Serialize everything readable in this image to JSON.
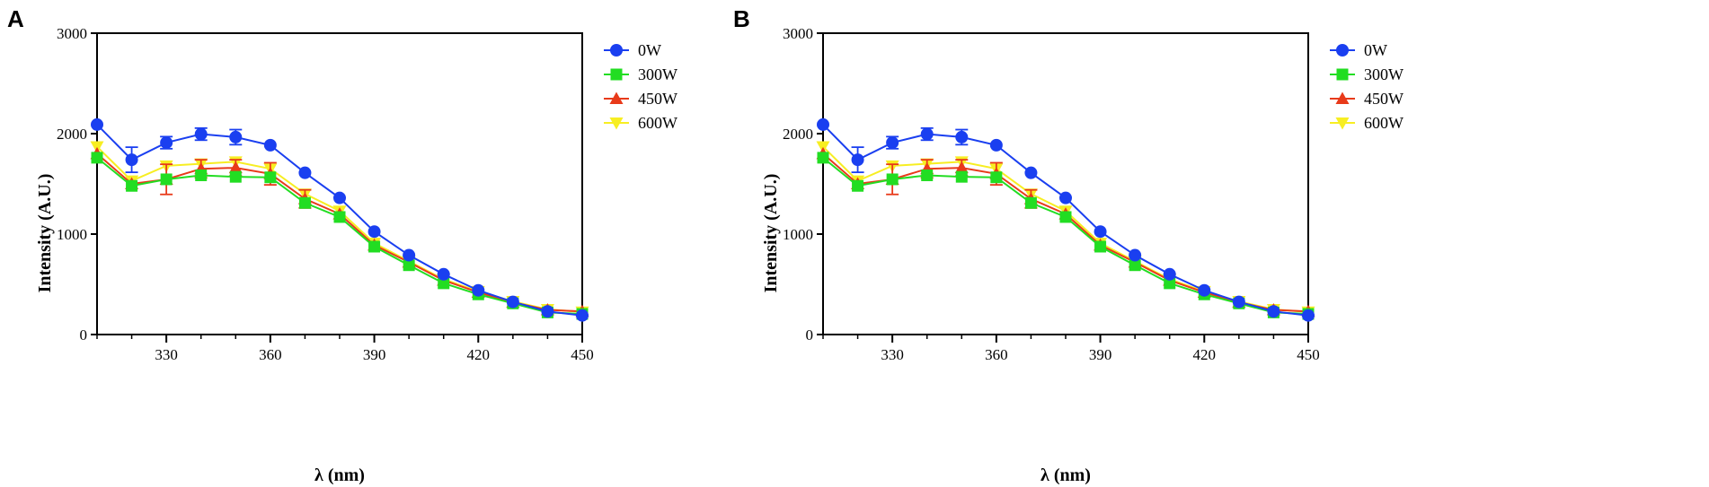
{
  "chart_data": [
    {
      "panel_label": "A",
      "type": "line",
      "xlabel": "λ (nm)",
      "ylabel": "Intensity  (A.U.)",
      "xlim": [
        310,
        450
      ],
      "ylim": [
        0,
        3000
      ],
      "x_ticks": [
        330,
        360,
        390,
        420,
        450
      ],
      "x_minor_step": 10,
      "y_ticks": [
        0,
        1000,
        2000,
        3000
      ],
      "x": [
        310,
        320,
        330,
        340,
        350,
        360,
        370,
        380,
        390,
        400,
        410,
        420,
        430,
        440,
        450
      ],
      "legend_position": "right",
      "series": [
        {
          "name": "0W",
          "color": "#1a3ff0",
          "marker": "circle",
          "values": [
            2090,
            1740,
            1910,
            1995,
            1965,
            1885,
            1610,
            1360,
            1025,
            790,
            600,
            440,
            325,
            230,
            190
          ],
          "errors": [
            0,
            125,
            60,
            60,
            75,
            0,
            0,
            0,
            0,
            0,
            0,
            0,
            0,
            0,
            0
          ]
        },
        {
          "name": "300W",
          "color": "#22dd22",
          "marker": "square",
          "values": [
            1760,
            1480,
            1545,
            1585,
            1570,
            1565,
            1310,
            1170,
            875,
            690,
            510,
            400,
            310,
            220,
            205
          ],
          "errors": [
            0,
            0,
            0,
            0,
            0,
            0,
            0,
            0,
            0,
            0,
            0,
            0,
            0,
            0,
            0
          ]
        },
        {
          "name": "450W",
          "color": "#e83a1a",
          "marker": "triangle-up",
          "values": [
            1800,
            1500,
            1545,
            1650,
            1660,
            1600,
            1350,
            1200,
            890,
            720,
            540,
            420,
            320,
            245,
            230
          ],
          "errors": [
            0,
            0,
            150,
            90,
            80,
            110,
            90,
            0,
            0,
            0,
            0,
            0,
            0,
            0,
            0
          ]
        },
        {
          "name": "600W",
          "color": "#f7ee22",
          "marker": "triangle-down",
          "values": [
            1870,
            1530,
            1680,
            1700,
            1720,
            1650,
            1400,
            1230,
            910,
            730,
            550,
            430,
            330,
            250,
            225
          ],
          "errors": [
            0,
            0,
            0,
            0,
            0,
            0,
            0,
            0,
            0,
            0,
            0,
            0,
            0,
            0,
            0
          ]
        }
      ]
    },
    {
      "panel_label": "B",
      "type": "line",
      "xlabel": "λ (nm)",
      "ylabel": "Intensity  (A.U.)",
      "xlim": [
        310,
        450
      ],
      "ylim": [
        0,
        3000
      ],
      "x_ticks": [
        330,
        360,
        390,
        420,
        450
      ],
      "x_minor_step": 10,
      "y_ticks": [
        0,
        1000,
        2000,
        3000
      ],
      "x": [
        310,
        320,
        330,
        340,
        350,
        360,
        370,
        380,
        390,
        400,
        410,
        420,
        430,
        440,
        450
      ],
      "legend_position": "right",
      "series": [
        {
          "name": "0W",
          "color": "#1a3ff0",
          "marker": "circle",
          "values": [
            2090,
            1740,
            1910,
            1995,
            1965,
            1885,
            1610,
            1360,
            1025,
            790,
            600,
            440,
            325,
            230,
            190
          ],
          "errors": [
            0,
            125,
            60,
            60,
            75,
            0,
            0,
            0,
            0,
            0,
            0,
            0,
            0,
            0,
            0
          ]
        },
        {
          "name": "300W",
          "color": "#22dd22",
          "marker": "square",
          "values": [
            1760,
            1480,
            1545,
            1585,
            1570,
            1565,
            1310,
            1170,
            875,
            690,
            510,
            400,
            310,
            220,
            205
          ],
          "errors": [
            0,
            0,
            0,
            0,
            0,
            0,
            0,
            0,
            0,
            0,
            0,
            0,
            0,
            0,
            0
          ]
        },
        {
          "name": "450W",
          "color": "#e83a1a",
          "marker": "triangle-up",
          "values": [
            1800,
            1500,
            1545,
            1650,
            1660,
            1600,
            1350,
            1200,
            890,
            720,
            540,
            420,
            320,
            245,
            230
          ],
          "errors": [
            0,
            0,
            150,
            90,
            80,
            110,
            90,
            0,
            0,
            0,
            0,
            0,
            0,
            0,
            0
          ]
        },
        {
          "name": "600W",
          "color": "#f7ee22",
          "marker": "triangle-down",
          "values": [
            1870,
            1530,
            1680,
            1700,
            1720,
            1650,
            1400,
            1230,
            910,
            730,
            550,
            430,
            330,
            250,
            225
          ],
          "errors": [
            0,
            0,
            0,
            0,
            0,
            0,
            0,
            0,
            0,
            0,
            0,
            0,
            0,
            0,
            0
          ]
        }
      ]
    }
  ]
}
